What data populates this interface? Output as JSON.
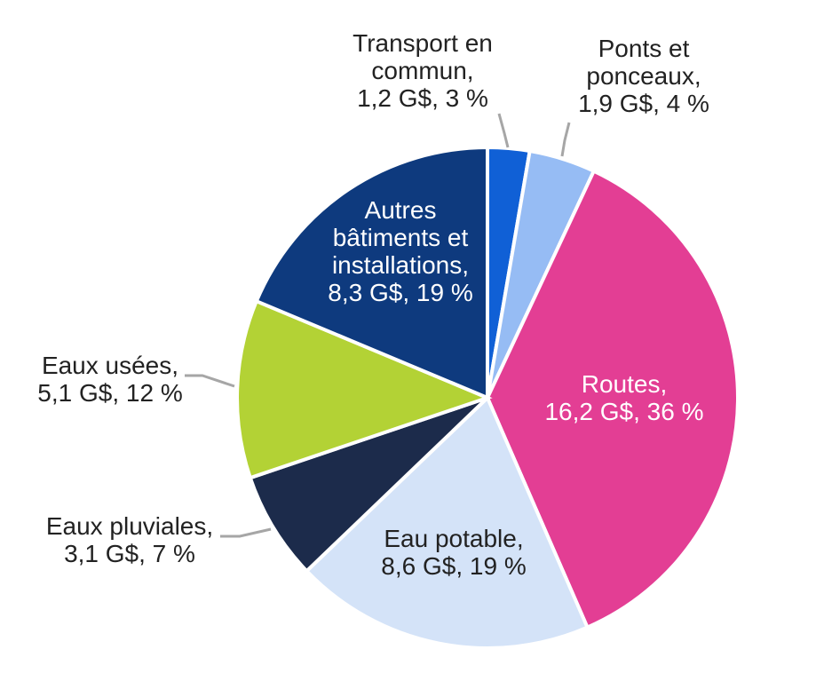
{
  "chart_data": {
    "type": "pie",
    "title": "",
    "start_angle_deg": 0,
    "direction": "clockwise",
    "legend": "none",
    "slices": [
      {
        "key": "transport",
        "name": "Transport en commun",
        "label_lines": [
          "Transport en",
          "commun,",
          "1,2 G$, 3 %"
        ],
        "value": 1.2,
        "unit": "G$",
        "percent": 3,
        "color": "#1060d6",
        "label_position": "outside",
        "label_color": "#222222"
      },
      {
        "key": "ponts",
        "name": "Ponts et ponceaux",
        "label_lines": [
          "Ponts et",
          "ponceaux,",
          "1,9 G$, 4 %"
        ],
        "value": 1.9,
        "unit": "G$",
        "percent": 4,
        "color": "#96bcf4",
        "label_position": "outside",
        "label_color": "#222222"
      },
      {
        "key": "routes",
        "name": "Routes",
        "label_lines": [
          "Routes,",
          "16,2 G$, 36 %"
        ],
        "value": 16.2,
        "unit": "G$",
        "percent": 36,
        "color": "#e33e94",
        "label_position": "inside",
        "label_color": "#ffffff"
      },
      {
        "key": "eau-potable",
        "name": "Eau potable",
        "label_lines": [
          "Eau potable,",
          "8,6 G$, 19 %"
        ],
        "value": 8.6,
        "unit": "G$",
        "percent": 19,
        "color": "#d4e3f8",
        "label_position": "inside",
        "label_color": "#222222"
      },
      {
        "key": "eaux-pluviales",
        "name": "Eaux pluviales",
        "label_lines": [
          "Eaux pluviales,",
          "3,1 G$, 7 %"
        ],
        "value": 3.1,
        "unit": "G$",
        "percent": 7,
        "color": "#1c2b4b",
        "label_position": "outside",
        "label_color": "#222222"
      },
      {
        "key": "eaux-usees",
        "name": "Eaux usées",
        "label_lines": [
          "Eaux usées,",
          "5,1 G$, 12 %"
        ],
        "value": 5.1,
        "unit": "G$",
        "percent": 12,
        "color": "#b3d235",
        "label_position": "outside",
        "label_color": "#222222"
      },
      {
        "key": "autres-batiments",
        "name": "Autres bâtiments et installations",
        "label_lines": [
          "Autres",
          "bâtiments et",
          "installations,",
          "8,3 G$, 19 %"
        ],
        "value": 8.3,
        "unit": "G$",
        "percent": 19,
        "color": "#0e3a7e",
        "label_position": "inside",
        "label_color": "#ffffff"
      }
    ]
  }
}
